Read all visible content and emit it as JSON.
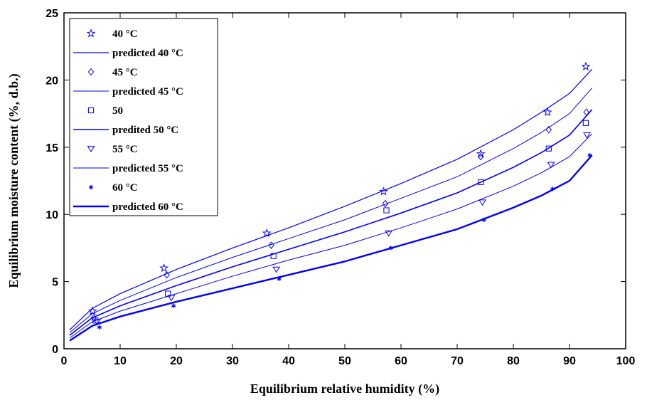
{
  "chart_data": {
    "type": "scatter",
    "title": "",
    "xlabel": "Equilibrium relative humidity (%)",
    "ylabel": "Equilibrium moisture content (%, d.b.)",
    "xlim": [
      0,
      100
    ],
    "ylim": [
      0,
      25
    ],
    "xticks": [
      "0",
      "10",
      "20",
      "30",
      "40",
      "50",
      "60",
      "70",
      "80",
      "90",
      "100"
    ],
    "yticks": [
      "0",
      "5",
      "10",
      "15",
      "20",
      "25"
    ],
    "grid": false,
    "legend_position": "top-left",
    "colors": {
      "series": "#0000ff",
      "axis": "#000000",
      "background": "#ffffff"
    },
    "observed": [
      {
        "name": "40 °C",
        "marker": "pentagram",
        "x": [
          5.1,
          17.8,
          36.1,
          56.9,
          74.2,
          86.1,
          92.9
        ],
        "y": [
          2.8,
          6.0,
          8.6,
          11.7,
          14.5,
          17.6,
          21.0
        ]
      },
      {
        "name": "45 °C",
        "marker": "diamond",
        "x": [
          5.3,
          18.3,
          36.9,
          57.2,
          74.2,
          86.3,
          93.0
        ],
        "y": [
          2.3,
          5.5,
          7.7,
          10.8,
          14.3,
          16.3,
          17.6
        ]
      },
      {
        "name": "50",
        "marker": "square",
        "x": [
          5.6,
          18.5,
          37.3,
          57.4,
          74.2,
          86.3,
          92.9
        ],
        "y": [
          2.1,
          4.1,
          6.9,
          10.3,
          12.4,
          14.9,
          16.8
        ]
      },
      {
        "name": "55 °C",
        "marker": "triangle-down",
        "x": [
          5.9,
          19.1,
          37.8,
          57.8,
          74.5,
          86.7,
          93.1
        ],
        "y": [
          2.0,
          3.8,
          5.9,
          8.6,
          10.9,
          13.7,
          15.9
        ]
      },
      {
        "name": "60 °C",
        "marker": "asterisk",
        "x": [
          6.3,
          19.5,
          38.3,
          58.2,
          74.8,
          87.0,
          93.6
        ],
        "y": [
          1.6,
          3.2,
          5.2,
          7.5,
          9.6,
          11.9,
          14.4
        ]
      }
    ],
    "predicted": [
      {
        "name": "predicted 40 °C",
        "line_width": 1.2,
        "x": [
          1,
          5,
          10,
          20,
          30,
          40,
          50,
          60,
          70,
          80,
          85,
          90,
          94
        ],
        "y": [
          1.4,
          3.0,
          4.1,
          5.9,
          7.5,
          9.0,
          10.6,
          12.3,
          14.1,
          16.3,
          17.6,
          19.0,
          20.8
        ]
      },
      {
        "name": "predicted 45 °C",
        "line_width": 1.0,
        "x": [
          1,
          5,
          10,
          20,
          30,
          40,
          50,
          60,
          70,
          80,
          85,
          90,
          94
        ],
        "y": [
          1.2,
          2.6,
          3.6,
          5.3,
          6.8,
          8.2,
          9.6,
          11.2,
          12.8,
          14.9,
          16.1,
          17.5,
          19.4
        ]
      },
      {
        "name": "predited 50 °C",
        "line_width": 1.6,
        "x": [
          1,
          5,
          10,
          20,
          30,
          40,
          50,
          60,
          70,
          80,
          85,
          90,
          94
        ],
        "y": [
          1.0,
          2.3,
          3.2,
          4.7,
          6.1,
          7.4,
          8.7,
          10.1,
          11.6,
          13.5,
          14.6,
          15.9,
          17.8
        ]
      },
      {
        "name": "predicted 55 °C",
        "line_width": 1.0,
        "x": [
          1,
          5,
          10,
          20,
          30,
          40,
          50,
          60,
          70,
          80,
          85,
          90,
          94
        ],
        "y": [
          0.8,
          2.0,
          2.8,
          4.1,
          5.4,
          6.6,
          7.7,
          9.0,
          10.4,
          12.1,
          13.1,
          14.3,
          16.0
        ]
      },
      {
        "name": "predicted 60 °C",
        "line_width": 2.4,
        "x": [
          1,
          5,
          10,
          20,
          30,
          40,
          50,
          60,
          70,
          80,
          85,
          90,
          94
        ],
        "y": [
          0.6,
          1.7,
          2.4,
          3.5,
          4.5,
          5.5,
          6.5,
          7.7,
          8.9,
          10.5,
          11.4,
          12.5,
          14.4
        ]
      }
    ]
  }
}
